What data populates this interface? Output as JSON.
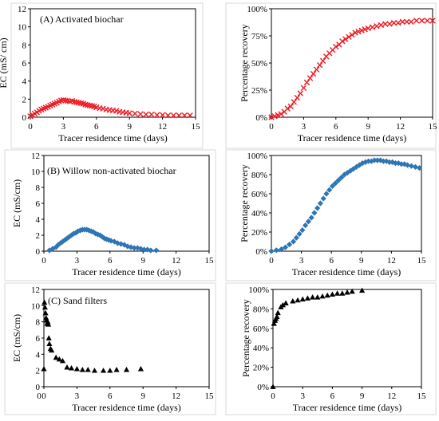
{
  "chart_data": [
    {
      "type": "scatter",
      "title": "(A) Activated biochar",
      "xlabel": "Tracer residence time (days)",
      "ylabel": "EC (mS/ cm)",
      "xlim": [
        0,
        15
      ],
      "ylim": [
        0,
        12
      ],
      "xticks": [
        "0",
        "3",
        "6",
        "9",
        "12",
        "15"
      ],
      "yticks": [
        "0",
        "2",
        "4",
        "6",
        "8",
        "10",
        "12"
      ],
      "marker": "x",
      "color": "#ee1c24",
      "grid": false,
      "series": [
        {
          "x": [
            0,
            0.2,
            0.4,
            0.6,
            0.8,
            1,
            1.2,
            1.4,
            1.6,
            1.8,
            2,
            2.2,
            2.4,
            2.6,
            2.8,
            3,
            3.2,
            3.4,
            3.6,
            3.8,
            4,
            4.2,
            4.4,
            4.6,
            4.8,
            5,
            5.2,
            5.4,
            5.6,
            5.8,
            6,
            6.3,
            6.6,
            6.9,
            7.2,
            7.5,
            7.8,
            8.1,
            8.4,
            8.7,
            9,
            9.5,
            10,
            10.5,
            11,
            11.5,
            12,
            12.5,
            13,
            13.5,
            14,
            14.5
          ],
          "y": [
            0.1,
            0.25,
            0.4,
            0.55,
            0.7,
            0.85,
            0.95,
            1.05,
            1.15,
            1.3,
            1.4,
            1.5,
            1.6,
            1.75,
            1.85,
            1.9,
            1.85,
            1.8,
            1.75,
            1.8,
            1.7,
            1.65,
            1.6,
            1.55,
            1.5,
            1.4,
            1.35,
            1.3,
            1.25,
            1.2,
            1.1,
            1.0,
            0.95,
            0.85,
            0.8,
            0.75,
            0.7,
            0.6,
            0.55,
            0.5,
            0.45,
            0.4,
            0.35,
            0.3,
            0.3,
            0.25,
            0.25,
            0.2,
            0.2,
            0.2,
            0.2,
            0.2
          ]
        }
      ]
    },
    {
      "type": "scatter",
      "xlabel": "Tracer residence time (days)",
      "ylabel": "Percentage recovery",
      "xlim": [
        0,
        15
      ],
      "ylim": [
        0,
        100
      ],
      "xticks": [
        "0",
        "3",
        "6",
        "9",
        "12",
        "15"
      ],
      "yticks": [
        "0%",
        "25%",
        "50%",
        "75%",
        "100%"
      ],
      "marker": "x",
      "color": "#ee1c24",
      "grid": false,
      "series": [
        {
          "x": [
            0,
            0.3,
            0.6,
            0.9,
            1.2,
            1.5,
            1.8,
            2.1,
            2.4,
            2.7,
            3,
            3.3,
            3.6,
            3.9,
            4.2,
            4.5,
            4.8,
            5.1,
            5.4,
            5.7,
            6,
            6.3,
            6.6,
            6.9,
            7.2,
            7.5,
            7.8,
            8.1,
            8.4,
            8.7,
            9,
            9.4,
            9.8,
            10.2,
            10.6,
            11,
            11.4,
            11.8,
            12.2,
            12.6,
            13,
            13.5,
            14,
            14.5,
            15
          ],
          "y": [
            0,
            1,
            2,
            3,
            5,
            8,
            10,
            14,
            18,
            22,
            27,
            32,
            36,
            40,
            44,
            48,
            52,
            56,
            59,
            62,
            65,
            67,
            70,
            72,
            74,
            76,
            78,
            79,
            80,
            81,
            82,
            83,
            84,
            85,
            86,
            86,
            87,
            87,
            88,
            88,
            88,
            89,
            89,
            89,
            89
          ]
        }
      ]
    },
    {
      "type": "scatter",
      "title": "(B) Willow non-activated biochar",
      "xlabel": "Tracer residence time (days)",
      "ylabel": "EC (mS/cm)",
      "xlim": [
        0,
        15
      ],
      "ylim": [
        0,
        12
      ],
      "xticks": [
        "0",
        "3",
        "6",
        "9",
        "12",
        "15"
      ],
      "yticks": [
        "0",
        "2",
        "4",
        "6",
        "8",
        "10",
        "12"
      ],
      "marker": "diamond",
      "color": "#2e75b6",
      "grid": false,
      "series": [
        {
          "x": [
            0.5,
            0.8,
            1.1,
            1.3,
            1.5,
            1.7,
            1.9,
            2.1,
            2.3,
            2.5,
            2.7,
            2.9,
            3.1,
            3.3,
            3.5,
            3.7,
            3.9,
            4.1,
            4.3,
            4.5,
            4.7,
            4.9,
            5.1,
            5.3,
            5.5,
            5.7,
            5.9,
            6.1,
            6.4,
            6.7,
            7,
            7.3,
            7.6,
            7.9,
            8.2,
            8.5,
            8.8,
            9.1,
            9.4,
            9.7,
            10.2
          ],
          "y": [
            0.1,
            0.3,
            0.5,
            0.8,
            1.0,
            1.2,
            1.4,
            1.6,
            1.8,
            2.0,
            2.2,
            2.3,
            2.5,
            2.6,
            2.7,
            2.7,
            2.7,
            2.6,
            2.5,
            2.4,
            2.2,
            2.1,
            2.0,
            1.8,
            1.6,
            1.5,
            1.4,
            1.3,
            1.2,
            1.0,
            0.9,
            0.8,
            0.6,
            0.5,
            0.4,
            0.4,
            0.3,
            0.2,
            0.2,
            0.1,
            0.1
          ]
        }
      ]
    },
    {
      "type": "scatter",
      "xlabel": "Tracer residence time (days)",
      "ylabel": "Percentage recovery",
      "xlim": [
        0,
        15
      ],
      "ylim": [
        0,
        100
      ],
      "xticks": [
        "0",
        "3",
        "6",
        "9",
        "12",
        "15"
      ],
      "yticks": [
        "0%",
        "20%",
        "40%",
        "60%",
        "80%",
        "100%"
      ],
      "marker": "diamond",
      "color": "#2e75b6",
      "grid": false,
      "series": [
        {
          "x": [
            0,
            0.5,
            1,
            1.4,
            1.8,
            2.2,
            2.5,
            2.8,
            3.1,
            3.4,
            3.7,
            4,
            4.3,
            4.6,
            4.9,
            5.2,
            5.5,
            5.8,
            6.1,
            6.4,
            6.7,
            7,
            7.3,
            7.6,
            7.9,
            8.2,
            8.5,
            8.8,
            9.1,
            9.4,
            9.7,
            10,
            10.3,
            10.6,
            10.9,
            11.2,
            11.5,
            11.8,
            12.1,
            12.4,
            12.7,
            13,
            13.3,
            13.6,
            14,
            14.4,
            14.8
          ],
          "y": [
            0,
            1,
            2,
            4,
            7,
            10,
            14,
            18,
            22,
            27,
            31,
            35,
            40,
            45,
            50,
            55,
            60,
            64,
            68,
            71,
            74,
            77,
            80,
            82,
            84,
            86,
            88,
            90,
            92,
            93,
            94,
            94,
            95,
            95,
            95,
            94,
            94,
            93,
            93,
            92,
            92,
            91,
            91,
            90,
            89,
            88,
            87
          ]
        }
      ]
    },
    {
      "type": "scatter",
      "title": "(C) Sand filters",
      "xlabel": "Tracer residence time (days)",
      "ylabel": "EC (mS/cm)",
      "xlim": [
        0,
        15
      ],
      "ylim": [
        0,
        12
      ],
      "xticks": [
        "0",
        "0",
        "3",
        "6",
        "9",
        "12",
        "15"
      ],
      "yticks": [
        "0",
        "2",
        "4",
        "6",
        "8",
        "10",
        "12"
      ],
      "marker": "triangle",
      "color": "#000000",
      "grid": false,
      "series": [
        {
          "x": [
            0,
            0.05,
            0.1,
            0.15,
            0.2,
            0.25,
            0.3,
            0.35,
            0.4,
            0.45,
            0.5,
            0.6,
            0.7,
            1.1,
            1.4,
            1.7,
            2.1,
            2.5,
            3,
            3.5,
            4,
            4.6,
            5.4,
            6,
            6.6,
            7.5,
            8.8
          ],
          "y": [
            2.2,
            10.4,
            9.8,
            9.1,
            8.5,
            8.2,
            7.8,
            8.0,
            7.7,
            6.0,
            5.3,
            4.7,
            4.5,
            3.6,
            3.4,
            3.2,
            2.4,
            2.3,
            2.2,
            2.1,
            2.1,
            2.0,
            2.0,
            2.0,
            2.1,
            2.1,
            2.2
          ]
        }
      ]
    },
    {
      "type": "scatter",
      "xlabel": "Tracer residence time (days)",
      "ylabel": "Percentage recovery",
      "xlim": [
        0,
        15
      ],
      "ylim": [
        0,
        100
      ],
      "xticks": [
        "0",
        "3",
        "6",
        "9",
        "12",
        "15"
      ],
      "yticks": [
        "0%",
        "20%",
        "40%",
        "60%",
        "80%",
        "100%"
      ],
      "marker": "triangle",
      "color": "#000000",
      "grid": false,
      "series": [
        {
          "x": [
            0,
            0.1,
            0.2,
            0.3,
            0.4,
            0.5,
            0.8,
            1,
            1.3,
            2,
            2.5,
            3,
            3.5,
            4,
            4.5,
            5,
            5.5,
            6,
            6.5,
            7,
            7.5,
            8,
            9
          ],
          "y": [
            0,
            65,
            68,
            70,
            72,
            76,
            82,
            84,
            86,
            88,
            89,
            90,
            91,
            92,
            92,
            93,
            94,
            95,
            96,
            96,
            97,
            98,
            99
          ]
        }
      ]
    }
  ]
}
